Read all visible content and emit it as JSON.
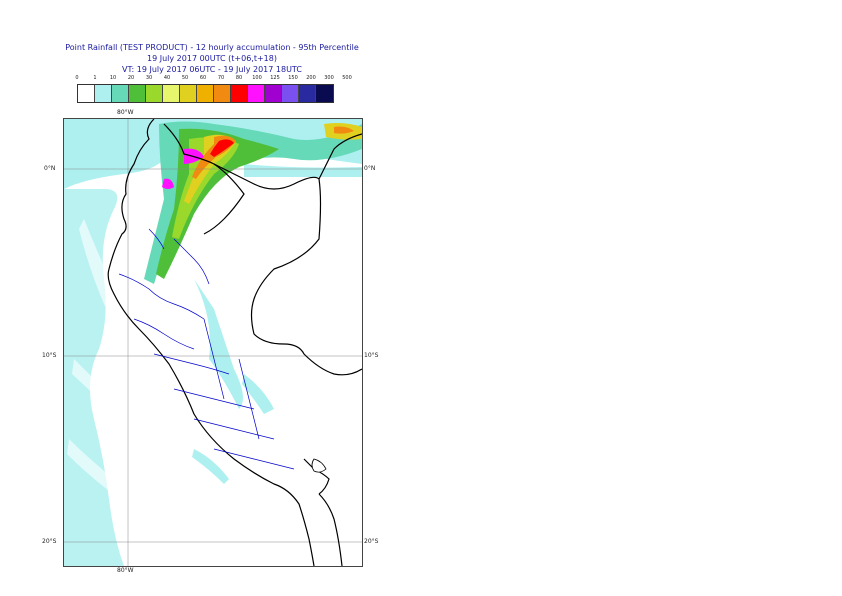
{
  "title": {
    "line1": "Point Rainfall (TEST PRODUCT) - 12 hourly accumulation - 95th Percentile",
    "line2": "19 July 2017 00UTC (t+06,t+18)",
    "line3": "VT: 19 July 2017 06UTC - 19 July 2017 18UTC"
  },
  "legend": {
    "thresholds": [
      "0",
      "1",
      "10",
      "20",
      "30",
      "40",
      "50",
      "60",
      "70",
      "80",
      "100",
      "125",
      "150",
      "200",
      "300",
      "500"
    ],
    "colors": [
      "#ffffff",
      "#aef0f0",
      "#66d9b8",
      "#4fbf3a",
      "#9ad82c",
      "#e6f56c",
      "#e0d020",
      "#f0b000",
      "#f08a10",
      "#ff0000",
      "#ff10ff",
      "#a000d0",
      "#7a50f0",
      "#2a2aa0",
      "#0a0a50"
    ]
  },
  "map": {
    "labels": {
      "lon_top": "80°W",
      "lon_bottom": "80°W",
      "lat_0_left": "0°N",
      "lat_0_right": "0°N",
      "lat_10_left": "10°S",
      "lat_10_right": "10°S",
      "lat_20_left": "20°S",
      "lat_20_right": "20°S"
    }
  }
}
